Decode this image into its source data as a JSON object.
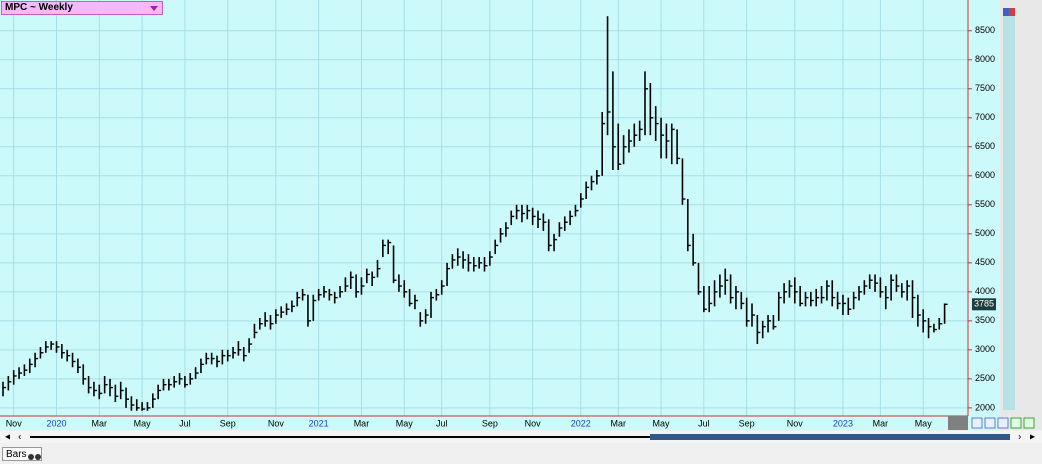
{
  "chart_data": {
    "type": "ohlc",
    "title": "MPC ~ Weekly",
    "categories": [
      null,
      null,
      "Nov",
      null,
      null,
      null,
      null,
      null,
      null,
      null,
      "2020",
      null,
      null,
      null,
      null,
      null,
      null,
      null,
      "Mar",
      null,
      null,
      null,
      null,
      null,
      null,
      null,
      "May",
      null,
      null,
      null,
      null,
      null,
      null,
      null,
      "Jul",
      null,
      null,
      null,
      null,
      null,
      null,
      null,
      "Sep",
      null,
      null,
      null,
      null,
      null,
      null,
      null,
      null,
      "Nov",
      null,
      null,
      null,
      null,
      null,
      null,
      null,
      "2021",
      null,
      null,
      null,
      null,
      null,
      null,
      null,
      "Mar",
      null,
      null,
      null,
      null,
      null,
      null,
      null,
      "May",
      null,
      null,
      null,
      null,
      null,
      null,
      "Jul",
      null,
      null,
      null,
      null,
      null,
      null,
      null,
      null,
      "Sep",
      null,
      null,
      null,
      null,
      null,
      null,
      null,
      "Nov",
      null,
      null,
      null,
      null,
      null,
      null,
      null,
      null,
      "2022",
      null,
      null,
      null,
      null,
      null,
      null,
      "Mar",
      null,
      null,
      null,
      null,
      null,
      null,
      null,
      "May",
      null,
      null,
      null,
      null,
      null,
      null,
      null,
      "Jul",
      null,
      null,
      null,
      null,
      null,
      null,
      null,
      "Sep",
      null,
      null,
      null,
      null,
      null,
      null,
      null,
      null,
      "Nov",
      null,
      null,
      null,
      null,
      null,
      null,
      null,
      null,
      "2023",
      null,
      null,
      null,
      null,
      null,
      null,
      "Mar",
      null,
      null,
      null,
      null,
      null,
      null,
      null,
      "May",
      null,
      null,
      null,
      null
    ],
    "high": [
      2450,
      2550,
      2650,
      2700,
      2750,
      2850,
      2950,
      3050,
      3150,
      3150,
      3150,
      3100,
      3000,
      2950,
      2850,
      2750,
      2550,
      2450,
      2400,
      2550,
      2500,
      2400,
      2450,
      2350,
      2200,
      2150,
      2100,
      2100,
      2250,
      2400,
      2500,
      2500,
      2550,
      2600,
      2550,
      2600,
      2700,
      2850,
      2950,
      2950,
      2900,
      3000,
      3000,
      3050,
      3150,
      3050,
      3200,
      3450,
      3550,
      3650,
      3600,
      3700,
      3750,
      3800,
      3850,
      4000,
      4050,
      3950,
      3950,
      4050,
      4100,
      4050,
      4000,
      4100,
      4250,
      4350,
      4300,
      4250,
      4400,
      4350,
      4550,
      4900,
      4900,
      4800,
      4300,
      4200,
      4050,
      3950,
      3650,
      3700,
      4000,
      4050,
      4200,
      4500,
      4650,
      4750,
      4700,
      4650,
      4600,
      4600,
      4600,
      4700,
      4900,
      5100,
      5200,
      5400,
      5500,
      5500,
      5500,
      5450,
      5400,
      5350,
      5250,
      5000,
      5200,
      5300,
      5400,
      5500,
      5700,
      5900,
      6000,
      6100,
      7100,
      8750,
      7800,
      6900,
      6700,
      6800,
      6900,
      6950,
      7800,
      7600,
      7200,
      7000,
      6900,
      6900,
      6800,
      6300,
      5600,
      5000,
      4500,
      4100,
      4100,
      4200,
      4300,
      4400,
      4300,
      4100,
      4000,
      3900,
      3800,
      3600,
      3500,
      3600,
      3600,
      4000,
      4150,
      4200,
      4250,
      4100,
      4000,
      4000,
      4050,
      4100,
      4200,
      4200,
      4000,
      3950,
      3900,
      4000,
      4100,
      4200,
      4300,
      4300,
      4250,
      4100,
      4300,
      4300,
      4150,
      4200,
      4200,
      3950,
      3700,
      3550,
      3450,
      3550,
      3800
    ],
    "low": [
      2200,
      2300,
      2400,
      2500,
      2550,
      2600,
      2700,
      2850,
      2950,
      3000,
      2950,
      2850,
      2800,
      2700,
      2600,
      2400,
      2250,
      2200,
      2150,
      2250,
      2200,
      2100,
      2150,
      2000,
      1950,
      1950,
      1950,
      1950,
      2000,
      2150,
      2300,
      2300,
      2350,
      2400,
      2350,
      2400,
      2500,
      2600,
      2750,
      2750,
      2700,
      2750,
      2800,
      2850,
      2900,
      2800,
      2950,
      3200,
      3350,
      3400,
      3350,
      3450,
      3550,
      3600,
      3650,
      3750,
      3850,
      3400,
      3500,
      3850,
      3900,
      3850,
      3800,
      3900,
      4000,
      4050,
      3900,
      3950,
      4150,
      4100,
      4250,
      4600,
      4650,
      4150,
      4000,
      3900,
      3750,
      3700,
      3400,
      3450,
      3550,
      3850,
      3950,
      4100,
      4400,
      4450,
      4400,
      4350,
      4350,
      4400,
      4350,
      4450,
      4650,
      4850,
      4950,
      5150,
      5250,
      5200,
      5250,
      5150,
      5100,
      5050,
      4700,
      4700,
      4950,
      5050,
      5150,
      5300,
      5450,
      5600,
      5750,
      5850,
      6000,
      6700,
      6100,
      6100,
      6200,
      6400,
      6500,
      6600,
      6700,
      6700,
      6600,
      6300,
      6300,
      6200,
      6200,
      5500,
      4700,
      4450,
      3950,
      3650,
      3650,
      3750,
      3900,
      3950,
      3800,
      3700,
      3700,
      3400,
      3400,
      3100,
      3200,
      3300,
      3350,
      3500,
      3800,
      3900,
      3800,
      3750,
      3750,
      3750,
      3750,
      3800,
      3850,
      3750,
      3700,
      3600,
      3600,
      3700,
      3850,
      3950,
      4050,
      4000,
      3900,
      3700,
      3850,
      4000,
      3900,
      3850,
      3550,
      3400,
      3300,
      3200,
      3300,
      3350,
      3450
    ],
    "close": [
      2350,
      2450,
      2550,
      2600,
      2650,
      2750,
      2850,
      2950,
      3050,
      3100,
      3050,
      2950,
      2900,
      2800,
      2700,
      2500,
      2350,
      2300,
      2250,
      2400,
      2350,
      2200,
      2300,
      2150,
      2050,
      2000,
      1980,
      2000,
      2150,
      2300,
      2400,
      2400,
      2450,
      2500,
      2400,
      2500,
      2600,
      2750,
      2850,
      2850,
      2800,
      2900,
      2900,
      2950,
      3000,
      2900,
      3100,
      3300,
      3450,
      3500,
      3450,
      3600,
      3650,
      3700,
      3750,
      3900,
      3950,
      3500,
      3850,
      3950,
      4000,
      3950,
      3900,
      4000,
      4100,
      4250,
      4000,
      4100,
      4300,
      4250,
      4400,
      4800,
      4850,
      4200,
      4100,
      4000,
      3800,
      3850,
      3500,
      3600,
      3900,
      3950,
      4100,
      4400,
      4550,
      4600,
      4550,
      4500,
      4450,
      4500,
      4450,
      4600,
      4800,
      5000,
      5100,
      5300,
      5400,
      5350,
      5400,
      5300,
      5250,
      5200,
      4800,
      4900,
      5100,
      5200,
      5300,
      5400,
      5600,
      5800,
      5900,
      6000,
      6900,
      7100,
      6500,
      6200,
      6500,
      6600,
      6700,
      6800,
      7500,
      7000,
      6900,
      6700,
      6600,
      6800,
      6300,
      5600,
      4800,
      4500,
      4000,
      3700,
      3800,
      4000,
      4100,
      4200,
      3900,
      4000,
      3800,
      3500,
      3600,
      3300,
      3400,
      3500,
      3400,
      3900,
      4000,
      4100,
      4000,
      3800,
      3900,
      3850,
      3900,
      3900,
      4100,
      3900,
      3800,
      3800,
      3700,
      3900,
      4000,
      4100,
      4200,
      4150,
      4000,
      3900,
      4200,
      4100,
      4000,
      4100,
      3900,
      3600,
      3500,
      3400,
      3350,
      3450,
      3785
    ],
    "color": "#000000",
    "ylim": [
      1860,
      9030
    ],
    "yticks": [
      2000,
      2500,
      3000,
      3500,
      4000,
      4500,
      5000,
      5500,
      6000,
      6500,
      7000,
      7500,
      8000,
      8500
    ],
    "grid": true
  },
  "ui": {
    "tab": "Bars"
  }
}
